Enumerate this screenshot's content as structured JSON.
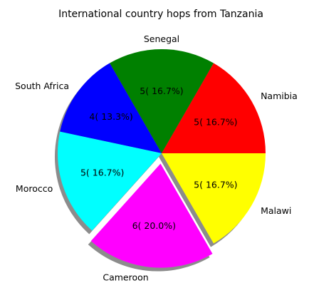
{
  "chart_data": {
    "type": "pie",
    "title": "International country hops from Tanzania",
    "labels": [
      "Namibia",
      "Senegal",
      "South Africa",
      "Morocco",
      "Cameroon",
      "Malawi"
    ],
    "values": [
      5,
      5,
      4,
      5,
      6,
      5
    ],
    "percent_labels": [
      "5( 16.7%)",
      "5( 16.7%)",
      "4( 13.3%)",
      "5( 16.7%)",
      "6( 20.0%)",
      "5( 16.7%)"
    ],
    "colors": [
      "#ff0000",
      "#008000",
      "#0000ff",
      "#00ffff",
      "#ff00ff",
      "#ffff00"
    ],
    "explode": [
      0,
      0,
      0,
      0,
      0.1,
      0
    ],
    "shadow": true,
    "start_angle": 0,
    "direction": "counterclockwise"
  }
}
